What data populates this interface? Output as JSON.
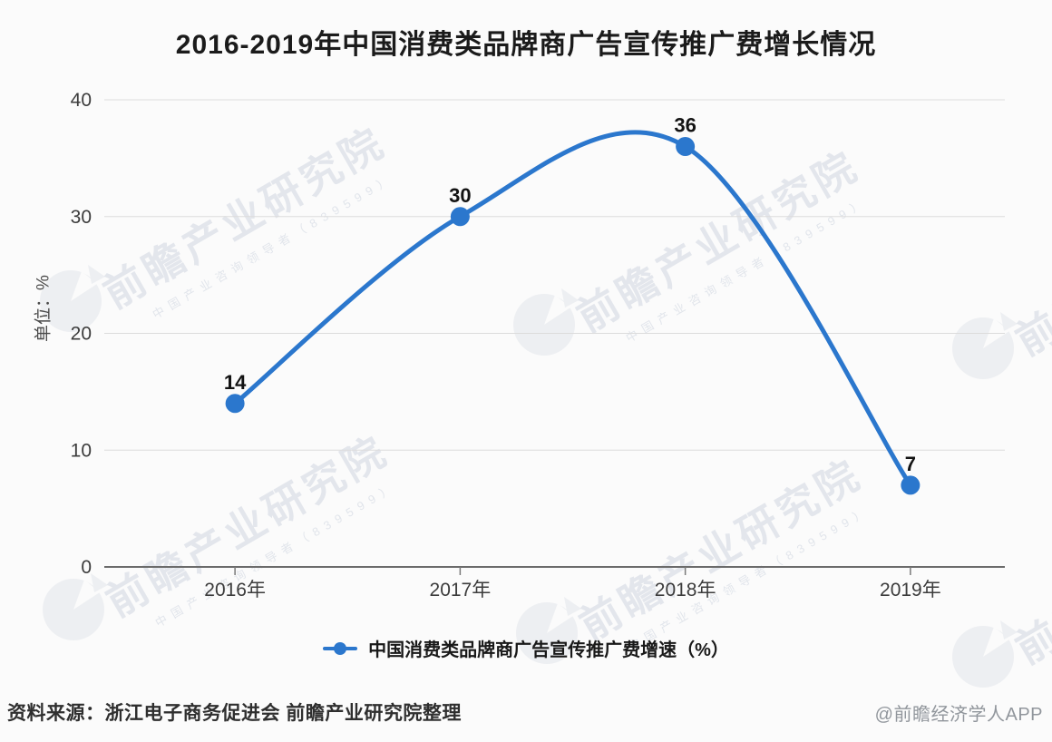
{
  "title": "2016-2019年中国消费类品牌商广告宣传推广费增长情况",
  "chart_data": {
    "type": "line",
    "smooth": true,
    "categories": [
      "2016年",
      "2017年",
      "2018年",
      "2019年"
    ],
    "series": [
      {
        "name": "中国消费类品牌商广告宣传推广费增速（%）",
        "values": [
          14,
          30,
          36,
          7
        ]
      }
    ],
    "ylabel": "单位：%",
    "ylim": [
      0,
      40
    ],
    "yticks": [
      0,
      10,
      20,
      30,
      40
    ],
    "grid": true,
    "legend_position": "bottom",
    "line_color": "#2b77cd",
    "data_label_color": "#131313"
  },
  "legend": {
    "label": "中国消费类品牌商广告宣传推广费增速（%）"
  },
  "footer": {
    "source": "资料来源：浙江电子商务促进会 前瞻产业研究院整理",
    "credit": "@前瞻经济学人APP"
  },
  "watermark": {
    "text": "前瞻产业研究院",
    "tagline": "中国产业咨询领导者（839599）"
  },
  "colors": {
    "accent": "#2b77cd",
    "grid": "#dcdcdc",
    "axis": "#6b6b6b",
    "tick_label": "#3c3c3c",
    "background": "#fbfbfb"
  }
}
